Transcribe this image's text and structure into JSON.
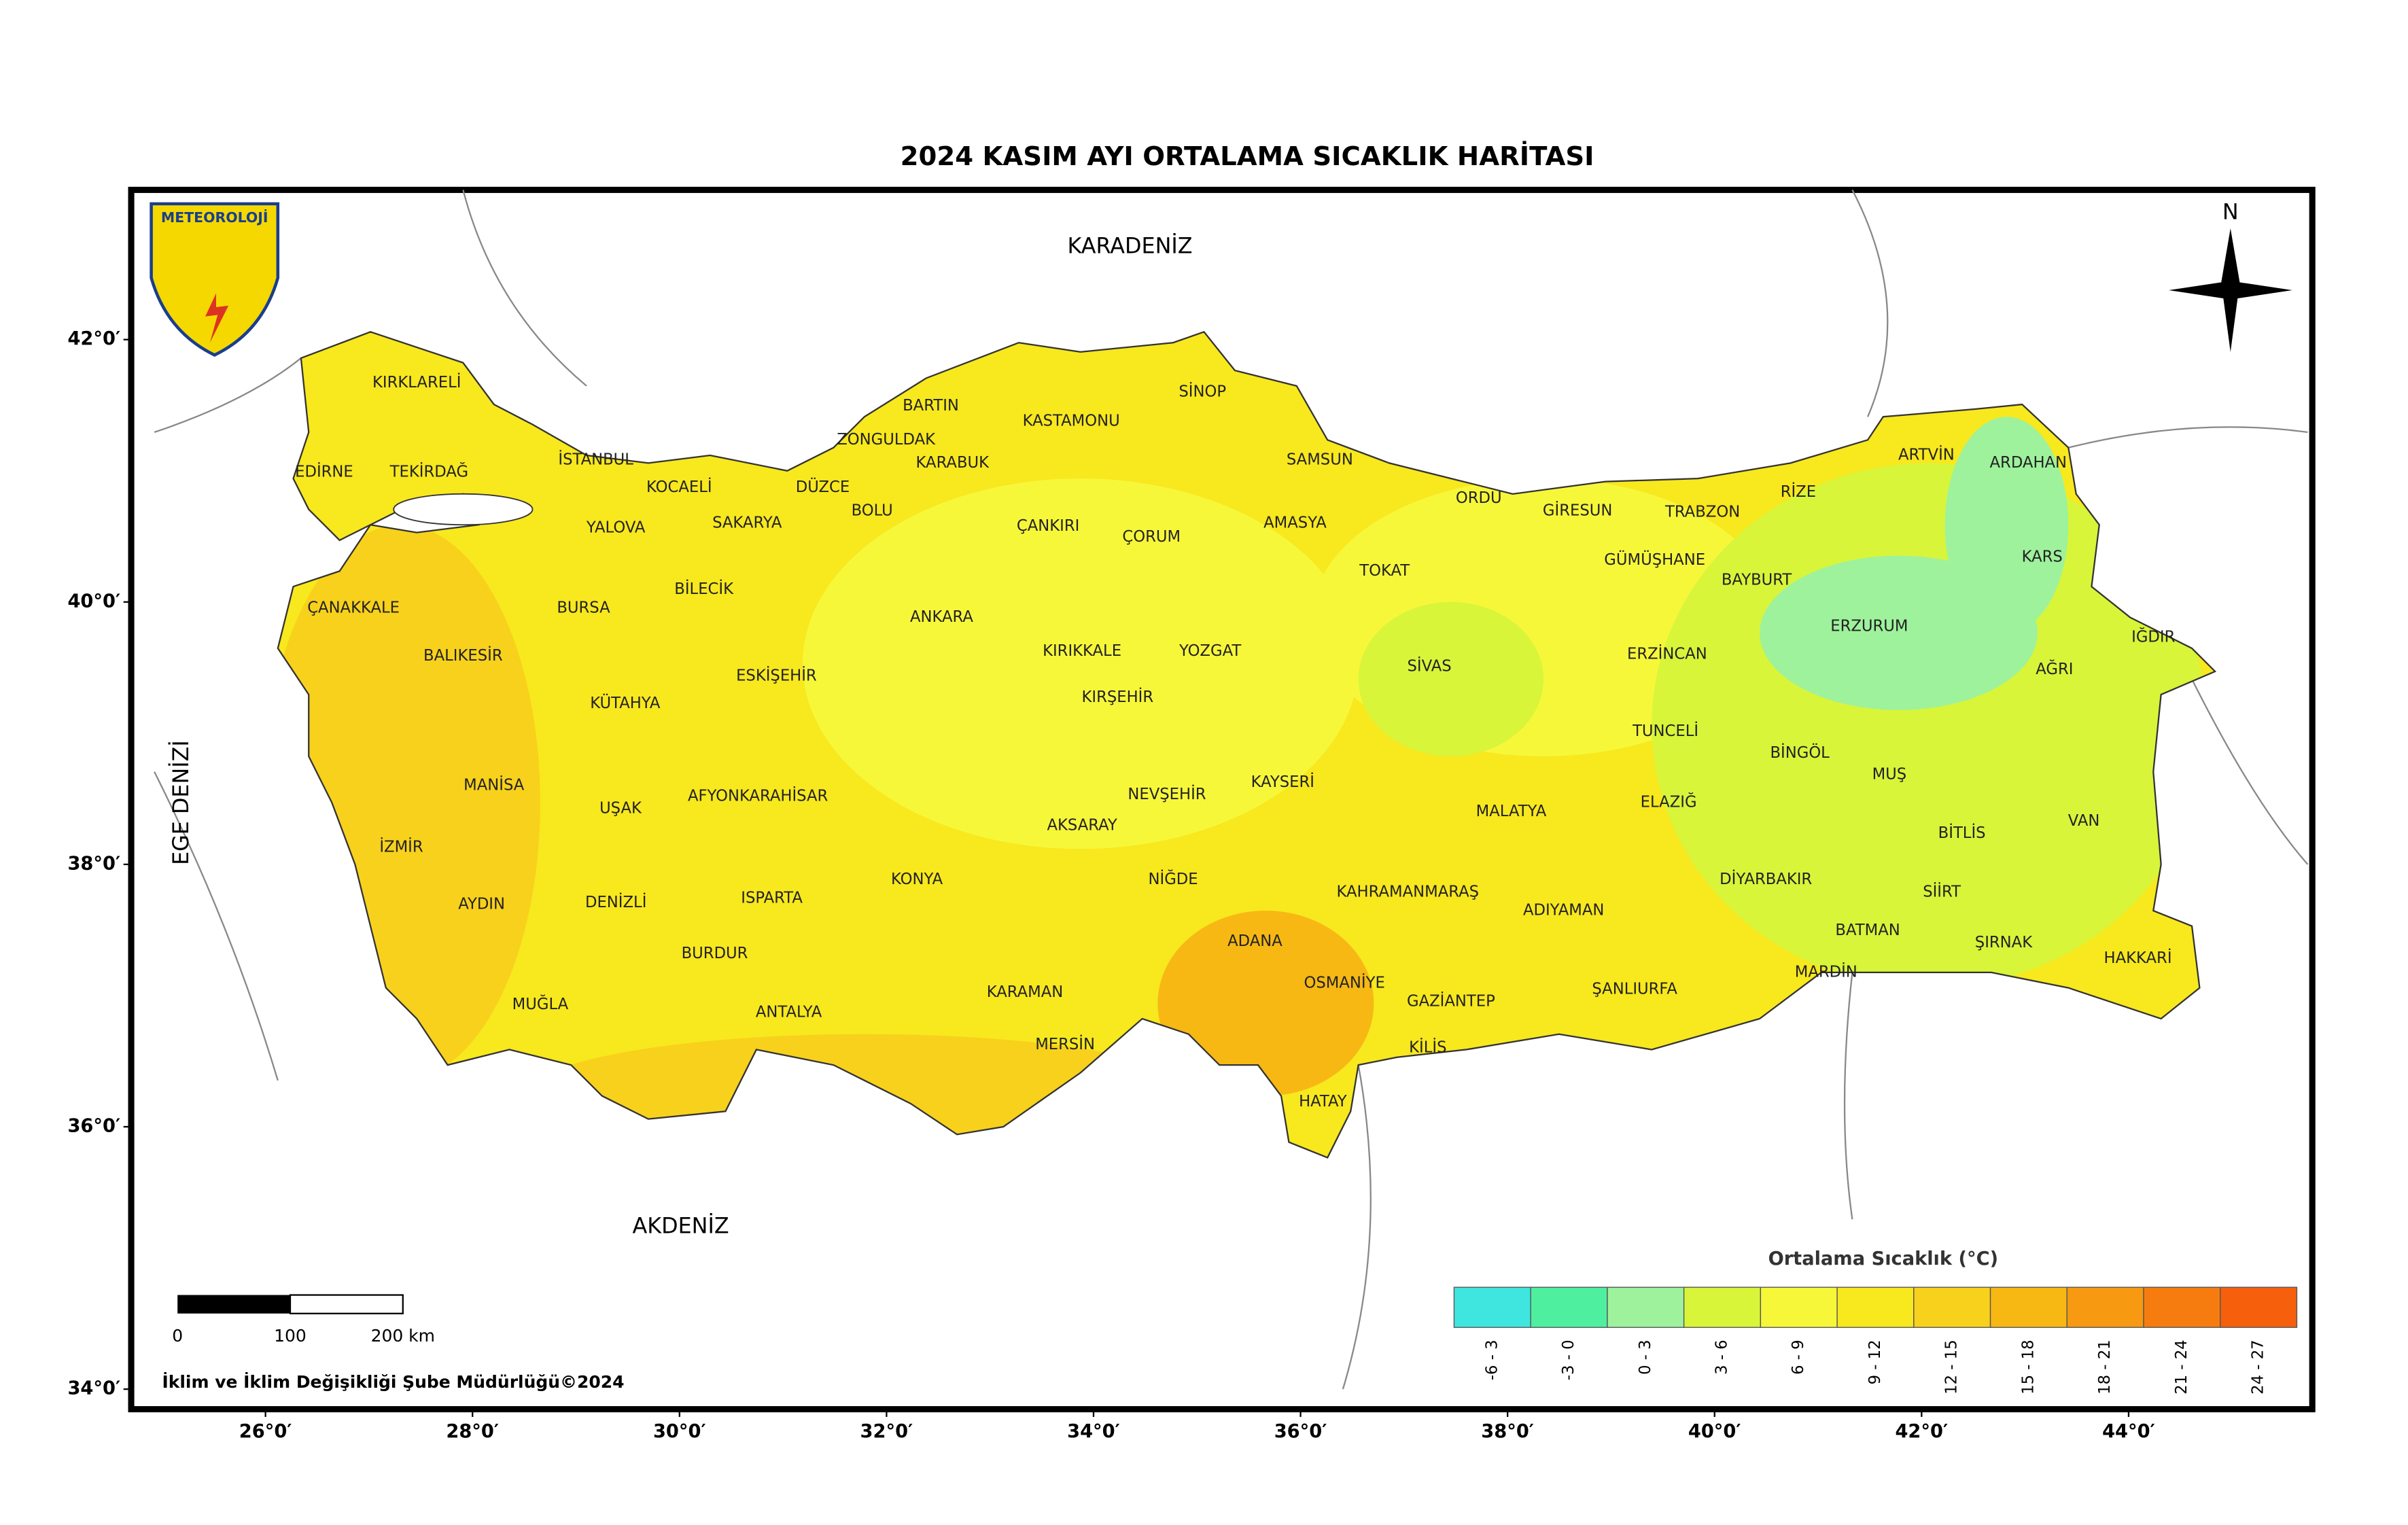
{
  "title": "2024 KASIM AYI ORTALAMA SICAKLIK HARİTASI",
  "logo": "METEOROLOJİ",
  "north": "N",
  "seas": [
    "KARADENİZ",
    "AKDENİZ",
    "EGE DENİZİ"
  ],
  "provinces": [
    "KIRKLARELİ",
    "EDİRNE",
    "TEKİRDAĞ",
    "İSTANBUL",
    "KOCAELİ",
    "YALOVA",
    "SAKARYA",
    "DÜZCE",
    "BOLU",
    "ZONGULDAK",
    "BARTIN",
    "KARABUK",
    "KASTAMONU",
    "SİNOP",
    "SAMSUN",
    "ÇANKIRI",
    "ÇORUM",
    "AMASYA",
    "ORDU",
    "GİRESUN",
    "TRABZON",
    "RİZE",
    "ARTVİN",
    "ARDAHAN",
    "KARS",
    "IĞDIR",
    "AĞRI",
    "ERZURUM",
    "BAYBURT",
    "GÜMÜŞHANE",
    "TOKAT",
    "SİVAS",
    "ERZİNCAN",
    "TUNCELİ",
    "BİNGÖL",
    "MUŞ",
    "BİTLİS",
    "VAN",
    "HAKKARİ",
    "ŞIRNAK",
    "SİİRT",
    "BATMAN",
    "MARDİN",
    "DİYARBAKIR",
    "ELAZIĞ",
    "MALATYA",
    "ADIYAMAN",
    "ŞANLIURFA",
    "GAZİANTEP",
    "KİLİS",
    "HATAY",
    "OSMANİYE",
    "ADANA",
    "KAHRAMANMARAŞ",
    "KAYSERİ",
    "YOZGAT",
    "KIRIKKALE",
    "KIRŞEHİR",
    "NEVŞEHİR",
    "AKSARAY",
    "NİĞDE",
    "KONYA",
    "KARAMAN",
    "MERSİN",
    "ANTALYA",
    "BURDUR",
    "ISPARTA",
    "DENİZLİ",
    "MUĞLA",
    "AYDIN",
    "İZMİR",
    "MANİSA",
    "UŞAK",
    "AFYONKARAHİSAR",
    "KÜTAHYA",
    "ESKİŞEHİR",
    "BİLECİK",
    "BURSA",
    "BALIKESİR",
    "ÇANAKKALE",
    "ANKARA"
  ],
  "latitude_ticks": [
    {
      "value": 42,
      "label": "42°0′"
    },
    {
      "value": 40,
      "label": "40°0′"
    },
    {
      "value": 38,
      "label": "38°0′"
    },
    {
      "value": 36,
      "label": "36°0′"
    },
    {
      "value": 34,
      "label": "34°0′"
    }
  ],
  "longitude_ticks": [
    {
      "value": 26,
      "label": "26°0′"
    },
    {
      "value": 28,
      "label": "28°0′"
    },
    {
      "value": 30,
      "label": "30°0′"
    },
    {
      "value": 32,
      "label": "32°0′"
    },
    {
      "value": 34,
      "label": "34°0′"
    },
    {
      "value": 36,
      "label": "36°0′"
    },
    {
      "value": 38,
      "label": "38°0′"
    },
    {
      "value": 40,
      "label": "40°0′"
    },
    {
      "value": 42,
      "label": "42°0′"
    },
    {
      "value": 44,
      "label": "44°0′"
    }
  ],
  "legend": {
    "title": "Ortalama Sıcaklık (°C)",
    "classes": [
      {
        "label": "-6 - 3",
        "color": "#3fe6e0"
      },
      {
        "label": "-3 - 0",
        "color": "#4ef0a0"
      },
      {
        "label": "0 - 3",
        "color": "#9ef29c"
      },
      {
        "label": "3 - 6",
        "color": "#d8f53a"
      },
      {
        "label": "6 - 9",
        "color": "#f7f73a"
      },
      {
        "label": "9 - 12",
        "color": "#f8e81e"
      },
      {
        "label": "12 - 15",
        "color": "#f8d11c"
      },
      {
        "label": "15 - 18",
        "color": "#f7b814"
      },
      {
        "label": "18 - 21",
        "color": "#f79a12"
      },
      {
        "label": "21 - 24",
        "color": "#f77c10"
      },
      {
        "label": "24 - 27",
        "color": "#f6600c"
      }
    ]
  },
  "scale_bar": {
    "labels": [
      "0",
      "100",
      "200 km"
    ]
  },
  "footer": "İklim ve İklim Değişikliği Şube Müdürlüğü©2024"
}
